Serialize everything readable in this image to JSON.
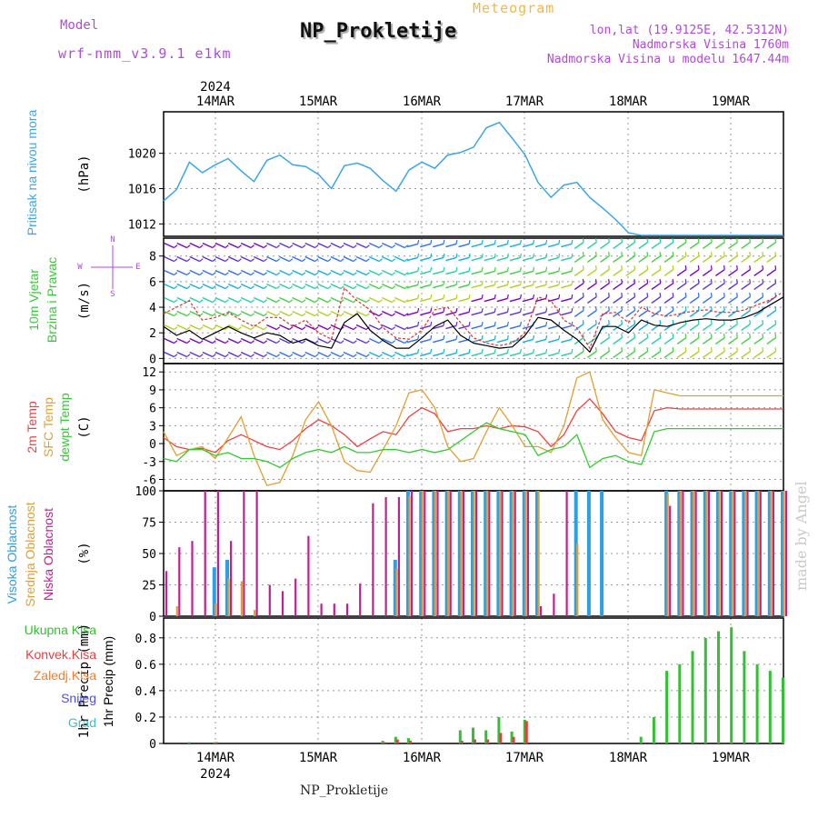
{
  "header": {
    "model_label": "Model",
    "model_name": "wrf-nmm_v3.9.1  e1km",
    "title": "NP_Prokletije",
    "meteogram_label": "Meteogram",
    "coords": "lon,lat (19.9125E, 42.5312N)",
    "elevation": "Nadmorska Visina 1760m",
    "elevation_model": "Nadmorska Visina u modelu 1647.44m"
  },
  "footer": {
    "station": "NP_Prokletije"
  },
  "watermark": "made by Angel",
  "colors": {
    "pressure": "#3aa6e8",
    "wind_label": "#33cc33",
    "t2m": "#f04040",
    "sfc": "#e0a030",
    "dewpt": "#30cc30",
    "cloud_high": "#2aa0e8",
    "cloud_mid": "#e0a030",
    "cloud_low": "#c02090",
    "precip_total": "#33c033",
    "precip_conv": "#e04040",
    "precip_strat": "#f08030",
    "snow": "#5050e0",
    "graupel": "#40c0c0",
    "purple": "#b04ad8",
    "grid": "#999999"
  },
  "chart_data": [
    {
      "type": "line",
      "panel": "pressure",
      "ylabel_color_text": "Pritisak na nivou mora",
      "unit": "(hPa)",
      "yticks": [
        1012,
        1016,
        1020
      ],
      "ylim": [
        1010.6,
        1024.7
      ],
      "x_date_labels": [
        "14MAR",
        "15MAR",
        "16MAR",
        "17MAR",
        "18MAR",
        "19MAR"
      ],
      "x_year": "2024",
      "x_hours": [
        0,
        3,
        6,
        9,
        12,
        15,
        18,
        21,
        24,
        27,
        30,
        33,
        36,
        39,
        42,
        45,
        48,
        51,
        54,
        57,
        60,
        63,
        66,
        69,
        72,
        75,
        78,
        81,
        84,
        87,
        90,
        93,
        96,
        99,
        102,
        105,
        108,
        111,
        114,
        117,
        120,
        123,
        126,
        129,
        132,
        135,
        138,
        141,
        144
      ],
      "series": [
        {
          "values": [
            1014.6,
            1015.9,
            1019.0,
            1017.8,
            1018.7,
            1019.4,
            1018.0,
            1016.8,
            1019.2,
            1019.8,
            1018.7,
            1018.5,
            1017.6,
            1016.0,
            1018.6,
            1018.9,
            1018.3,
            1016.9,
            1015.7,
            1018.1,
            1019.0,
            1018.3,
            1019.8,
            1020.1,
            1020.7,
            1022.9,
            1023.5,
            1021.7,
            1019.8,
            1016.7,
            1015.0,
            1016.4,
            1016.7,
            1015.0,
            1013.8,
            1012.5,
            1011.0,
            1010.7,
            1010.7,
            1010.7,
            1010.7,
            1010.7,
            1010.7,
            1010.7,
            1010.7,
            1010.7,
            1010.7,
            1010.7,
            1010.7
          ]
        }
      ]
    },
    {
      "type": "scatter",
      "panel": "wind",
      "ylabel_color_text": [
        "10m Vjetar",
        "Brzina i Pravac"
      ],
      "unit": "(m/s)",
      "compass": [
        "N",
        "W",
        "E",
        "S"
      ],
      "yticks": [
        0,
        2,
        4,
        6,
        8
      ],
      "ylim": [
        -0.4,
        9.4
      ],
      "series": [
        {
          "name": "speed",
          "values": [
            2.5,
            1.8,
            2.2,
            1.5,
            2.0,
            2.5,
            2.0,
            1.6,
            2.0,
            1.8,
            1.2,
            1.5,
            1.0,
            0.8,
            2.8,
            3.5,
            2.2,
            1.4,
            0.8,
            0.8,
            1.6,
            2.5,
            3.0,
            1.8,
            1.2,
            1.0,
            0.8,
            0.9,
            1.8,
            3.2,
            3.0,
            2.2,
            1.5,
            0.5,
            2.5,
            2.5,
            2.0,
            3.0,
            2.6,
            2.5,
            2.8,
            3.0,
            3.1,
            3.0,
            3.0,
            3.2,
            3.6,
            4.2,
            4.8
          ]
        },
        {
          "name": "gust",
          "values": [
            3.5,
            4.0,
            4.5,
            3.0,
            3.2,
            3.6,
            3.0,
            2.5,
            3.2,
            3.2,
            2.5,
            3.0,
            2.0,
            1.5,
            5.5,
            4.5,
            3.8,
            2.4,
            1.6,
            1.5,
            2.2,
            3.8,
            4.0,
            2.8,
            1.6,
            1.2,
            1.0,
            1.2,
            2.0,
            4.8,
            4.5,
            3.0,
            2.4,
            0.8,
            3.5,
            3.6,
            2.8,
            4.0,
            3.5,
            3.3,
            3.5,
            3.7,
            3.8,
            3.6,
            3.6,
            3.8,
            4.2,
            4.6,
            5.2
          ]
        }
      ]
    },
    {
      "type": "line",
      "panel": "temperature",
      "ylabel_color_text": [
        "2m Temp",
        "SFC Temp",
        "dewpt Temp"
      ],
      "unit": "(C)",
      "yticks": [
        -6,
        -3,
        0,
        3,
        6,
        9,
        12
      ],
      "ylim": [
        -7.9,
        13.4
      ],
      "series": [
        {
          "name": "2m Temp",
          "values": [
            1.0,
            -0.5,
            -1.0,
            -0.8,
            -1.5,
            0.5,
            1.5,
            0.5,
            -0.5,
            -1.0,
            0.5,
            2.5,
            4.0,
            3.0,
            1.5,
            -0.5,
            0.8,
            2.0,
            1.5,
            4.5,
            6.0,
            5.0,
            2.0,
            2.5,
            2.5,
            3.0,
            2.5,
            3.0,
            2.8,
            2.0,
            -0.5,
            1.5,
            5.5,
            7.5,
            5.0,
            2.0,
            1.0,
            0.5,
            5.5,
            6.0,
            5.8,
            5.8,
            5.8,
            5.8,
            5.8,
            5.8,
            5.8,
            5.8,
            5.8
          ]
        },
        {
          "name": "SFC Temp",
          "values": [
            2.0,
            -2.0,
            -1.0,
            -0.5,
            -2.5,
            1.0,
            4.5,
            -2.0,
            -7.0,
            -6.5,
            -2.0,
            4.0,
            7.0,
            3.0,
            -3.0,
            -4.5,
            -4.8,
            -1.0,
            3.0,
            8.5,
            9.0,
            6.0,
            -0.5,
            -3.0,
            -2.5,
            2.0,
            6.0,
            3.0,
            -0.5,
            -0.5,
            -1.5,
            3.0,
            11.0,
            12.0,
            4.0,
            1.0,
            -1.5,
            -2.0,
            9.0,
            8.5,
            8.0,
            8.0,
            8.0,
            8.0,
            8.0,
            8.0,
            8.0,
            8.0,
            8.0
          ]
        },
        {
          "name": "dewpt Temp",
          "values": [
            -2.5,
            -3.0,
            -1.0,
            -1.0,
            -2.0,
            -1.5,
            -2.5,
            -2.5,
            -3.0,
            -4.0,
            -2.5,
            -1.5,
            -1.0,
            -1.5,
            -0.5,
            -1.5,
            -1.5,
            -1.0,
            -1.0,
            -1.5,
            -1.0,
            -1.5,
            -1.0,
            0.5,
            2.0,
            3.5,
            2.5,
            2.0,
            1.5,
            -2.0,
            -1.0,
            -0.5,
            1.5,
            -4.0,
            -2.5,
            -2.0,
            -3.0,
            -3.5,
            2.0,
            2.5,
            2.5,
            2.5,
            2.5,
            2.5,
            2.5,
            2.5,
            2.5,
            2.5,
            2.5
          ]
        }
      ]
    },
    {
      "type": "bar",
      "panel": "clouds",
      "ylabel_color_text": [
        "Visoka Oblacnost",
        "Srednja Oblacnost",
        "Niska Oblacnost"
      ],
      "unit": "(%)",
      "yticks": [
        0,
        25,
        50,
        75,
        100
      ],
      "ylim": [
        0,
        100
      ],
      "series": [
        {
          "name": "Visoka Oblacnost",
          "values": [
            0,
            0,
            0,
            0,
            39,
            45,
            0,
            0,
            0,
            0,
            0,
            0,
            0,
            0,
            0,
            0,
            0,
            0,
            45,
            100,
            100,
            100,
            100,
            100,
            100,
            100,
            100,
            100,
            100,
            100,
            0,
            0,
            100,
            100,
            100,
            0,
            0,
            0,
            0,
            100,
            100,
            100,
            100,
            100,
            100,
            100,
            100,
            100,
            100
          ]
        },
        {
          "name": "Srednja Oblacnost",
          "values": [
            0,
            8,
            0,
            0,
            10,
            30,
            28,
            5,
            0,
            0,
            0,
            0,
            0,
            0,
            0,
            0,
            0,
            0,
            38,
            96,
            100,
            100,
            100,
            100,
            100,
            100,
            100,
            100,
            100,
            100,
            0,
            0,
            58,
            0,
            0,
            0,
            0,
            0,
            0,
            98,
            100,
            100,
            100,
            100,
            100,
            100,
            100,
            100,
            100
          ]
        },
        {
          "name": "Niska Oblacnost",
          "values": [
            36,
            55,
            60,
            100,
            100,
            60,
            100,
            100,
            25,
            20,
            30,
            64,
            10,
            10,
            10,
            26,
            90,
            95,
            95,
            100,
            100,
            100,
            100,
            100,
            100,
            100,
            100,
            100,
            100,
            8,
            18,
            100,
            0,
            0,
            0,
            0,
            0,
            0,
            0,
            88,
            100,
            100,
            100,
            100,
            100,
            100,
            100,
            100,
            100
          ]
        }
      ]
    },
    {
      "type": "bar",
      "panel": "precip",
      "ylabel_text": "1hr Precip (mm)",
      "legend": [
        "Ukupna Kisa",
        "Konvek.Kisa",
        "Zaledj.Kisa",
        "Snijeg",
        "Grad"
      ],
      "yticks": [
        0,
        0.2,
        0.4,
        0.6,
        0.8
      ],
      "ylim": [
        0,
        0.95
      ],
      "series": [
        {
          "name": "Ukupna Kisa",
          "values": [
            0,
            0,
            0.01,
            0,
            0.01,
            0,
            0,
            0,
            0,
            0,
            0,
            0,
            0,
            0,
            0,
            0,
            0,
            0.02,
            0.05,
            0.04,
            0,
            0,
            0,
            0.1,
            0.12,
            0.1,
            0.2,
            0.09,
            0.18,
            0,
            0,
            0,
            0,
            0,
            0,
            0,
            0,
            0.05,
            0.2,
            0.55,
            0.6,
            0.7,
            0.8,
            0.85,
            0.88,
            0.7,
            0.6,
            0.55,
            0.5
          ]
        },
        {
          "name": "Konvek.Kisa",
          "values": [
            0,
            0,
            0,
            0,
            0.01,
            0,
            0,
            0,
            0,
            0,
            0,
            0,
            0,
            0,
            0,
            0,
            0,
            0.01,
            0.03,
            0.02,
            0,
            0,
            0,
            0.02,
            0.03,
            0.03,
            0.08,
            0.05,
            0.17,
            0,
            0,
            0,
            0,
            0,
            0,
            0,
            0,
            0,
            0,
            0,
            0,
            0,
            0,
            0,
            0,
            0,
            0,
            0,
            0
          ]
        }
      ]
    }
  ]
}
